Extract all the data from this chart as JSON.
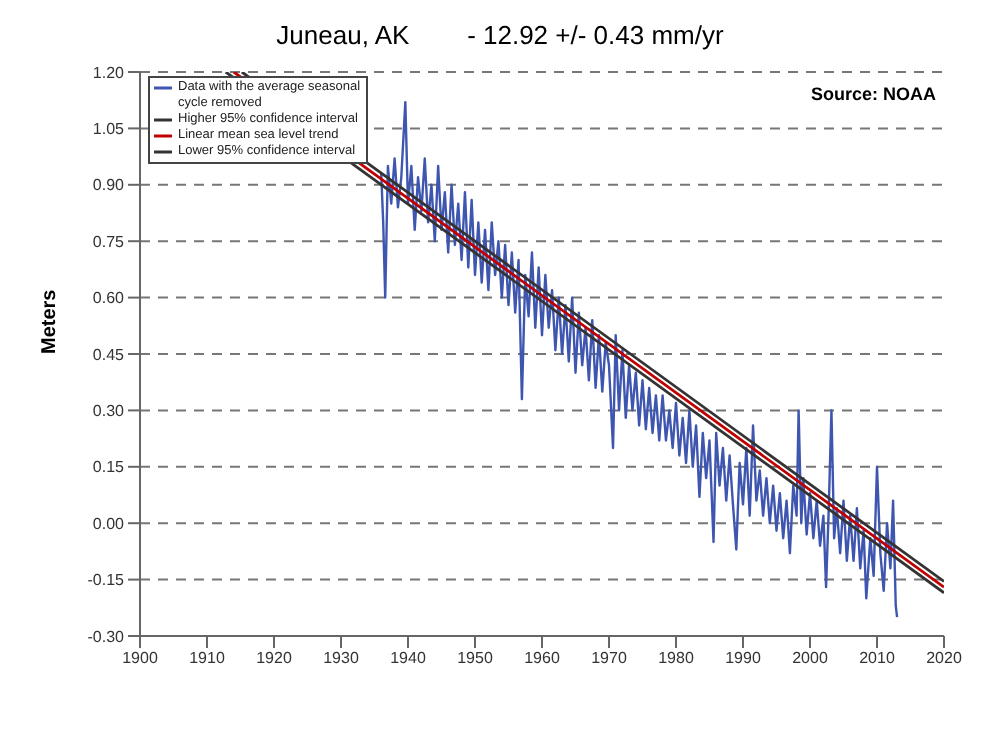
{
  "chart_data": {
    "type": "line",
    "title": "Juneau, AK        - 12.92 +/- 0.43 mm/yr",
    "ylabel": "Meters",
    "annotations": [
      "Source: NOAA"
    ],
    "xlim": [
      1900,
      2020
    ],
    "xticks": [
      1900,
      1910,
      1920,
      1930,
      1940,
      1950,
      1960,
      1970,
      1980,
      1990,
      2000,
      2010,
      2020
    ],
    "ylim": [
      -0.3,
      1.2
    ],
    "yticks": [
      {
        "value": -0.3,
        "label": "-0.30"
      },
      {
        "value": -0.15,
        "label": "-0.15"
      },
      {
        "value": 0,
        "label": "0.00"
      },
      {
        "value": 0.15,
        "label": "0.15"
      },
      {
        "value": 0.3,
        "label": "0.30"
      },
      {
        "value": 0.45,
        "label": "0.45"
      },
      {
        "value": 0.6,
        "label": "0.60"
      },
      {
        "value": 0.75,
        "label": "0.75"
      },
      {
        "value": 0.9,
        "label": "0.90"
      },
      {
        "value": 1.05,
        "label": "1.05"
      },
      {
        "value": 1.2,
        "label": "1.20"
      }
    ],
    "grid": "y",
    "legend": "top left",
    "marker": "none",
    "series": [
      {
        "name": "Data with the average seasonal cycle removed",
        "color": "#3f56b0",
        "x": [
          1936.0,
          1936.3,
          1936.6,
          1937.0,
          1937.5,
          1938.0,
          1938.5,
          1939.0,
          1939.6,
          1940.0,
          1940.5,
          1941.0,
          1941.5,
          1942.0,
          1942.5,
          1943.0,
          1943.5,
          1944.0,
          1944.5,
          1945.0,
          1945.5,
          1946.0,
          1946.5,
          1947.0,
          1947.5,
          1948.0,
          1948.5,
          1949.0,
          1949.5,
          1950.0,
          1950.5,
          1951.0,
          1951.5,
          1952.0,
          1952.5,
          1953.0,
          1953.5,
          1954.0,
          1954.5,
          1955.0,
          1955.5,
          1956.0,
          1956.5,
          1957.0,
          1957.5,
          1958.0,
          1958.5,
          1959.0,
          1959.5,
          1960.0,
          1960.5,
          1961.0,
          1961.5,
          1962.0,
          1962.5,
          1963.0,
          1963.5,
          1964.0,
          1964.5,
          1965.0,
          1965.5,
          1966.0,
          1966.5,
          1967.0,
          1967.5,
          1968.0,
          1968.5,
          1969.0,
          1969.5,
          1970.0,
          1970.6,
          1971.0,
          1971.5,
          1972.0,
          1972.5,
          1973.0,
          1973.5,
          1974.0,
          1974.5,
          1975.0,
          1975.5,
          1976.0,
          1976.5,
          1977.0,
          1977.5,
          1978.0,
          1978.5,
          1979.0,
          1979.5,
          1980.0,
          1980.5,
          1981.0,
          1981.5,
          1982.0,
          1982.5,
          1983.0,
          1983.5,
          1984.0,
          1984.5,
          1985.0,
          1985.6,
          1986.0,
          1986.5,
          1987.0,
          1987.5,
          1988.0,
          1988.5,
          1989.0,
          1989.5,
          1990.0,
          1990.5,
          1991.0,
          1991.5,
          1992.0,
          1992.5,
          1993.0,
          1993.5,
          1994.0,
          1994.5,
          1995.0,
          1995.5,
          1996.0,
          1996.5,
          1997.0,
          1997.5,
          1998.0,
          1998.3,
          1998.7,
          1999.0,
          1999.5,
          2000.0,
          2000.5,
          2001.0,
          2001.5,
          2002.0,
          2002.4,
          2002.8,
          2003.2,
          2003.6,
          2004.0,
          2004.5,
          2005.0,
          2005.5,
          2006.0,
          2006.5,
          2007.0,
          2007.5,
          2008.0,
          2008.4,
          2009.0,
          2009.5,
          2010.0,
          2010.5,
          2011.0,
          2011.5,
          2012.0,
          2012.4,
          2012.8,
          2013.0
        ],
        "values": [
          0.93,
          0.8,
          0.6,
          0.95,
          0.85,
          0.97,
          0.84,
          0.92,
          1.12,
          0.85,
          0.95,
          0.78,
          0.92,
          0.83,
          0.97,
          0.8,
          0.9,
          0.75,
          0.95,
          0.78,
          0.88,
          0.72,
          0.9,
          0.74,
          0.85,
          0.7,
          0.88,
          0.68,
          0.86,
          0.66,
          0.8,
          0.64,
          0.78,
          0.62,
          0.8,
          0.66,
          0.75,
          0.6,
          0.74,
          0.58,
          0.72,
          0.56,
          0.7,
          0.33,
          0.66,
          0.55,
          0.72,
          0.52,
          0.68,
          0.5,
          0.66,
          0.52,
          0.62,
          0.46,
          0.6,
          0.45,
          0.58,
          0.43,
          0.6,
          0.4,
          0.56,
          0.42,
          0.52,
          0.38,
          0.54,
          0.36,
          0.5,
          0.35,
          0.48,
          0.42,
          0.2,
          0.5,
          0.3,
          0.46,
          0.28,
          0.42,
          0.3,
          0.4,
          0.26,
          0.38,
          0.25,
          0.36,
          0.24,
          0.34,
          0.22,
          0.34,
          0.22,
          0.3,
          0.2,
          0.32,
          0.18,
          0.28,
          0.16,
          0.3,
          0.15,
          0.26,
          0.07,
          0.24,
          0.12,
          0.22,
          -0.05,
          0.24,
          0.1,
          0.2,
          0.06,
          0.18,
          0.05,
          -0.07,
          0.16,
          0.05,
          0.2,
          0.02,
          0.26,
          0.06,
          0.14,
          0.02,
          0.12,
          0.0,
          0.1,
          -0.02,
          0.08,
          -0.04,
          0.06,
          -0.08,
          0.1,
          0.02,
          0.3,
          0.0,
          0.12,
          -0.03,
          0.08,
          -0.04,
          0.06,
          -0.06,
          0.02,
          -0.17,
          0.04,
          0.3,
          -0.04,
          0.04,
          -0.08,
          0.06,
          -0.1,
          0.02,
          -0.1,
          0.04,
          -0.12,
          -0.02,
          -0.2,
          -0.04,
          -0.14,
          0.15,
          -0.08,
          -0.18,
          0.0,
          -0.12,
          0.06,
          -0.22,
          -0.25
        ]
      },
      {
        "name": "Higher 95% confidence interval",
        "color": "#333333",
        "x": [
          1915.2,
          2020
        ],
        "values": [
          1.2,
          -0.155
        ]
      },
      {
        "name": "Linear mean sea level trend",
        "color": "#c00000",
        "x": [
          1914,
          2020
        ],
        "values": [
          1.2,
          -0.17
        ]
      },
      {
        "name": "Lower 95% confidence interval",
        "color": "#333333",
        "x": [
          1912.8,
          2020
        ],
        "values": [
          1.2,
          -0.185
        ]
      }
    ]
  }
}
